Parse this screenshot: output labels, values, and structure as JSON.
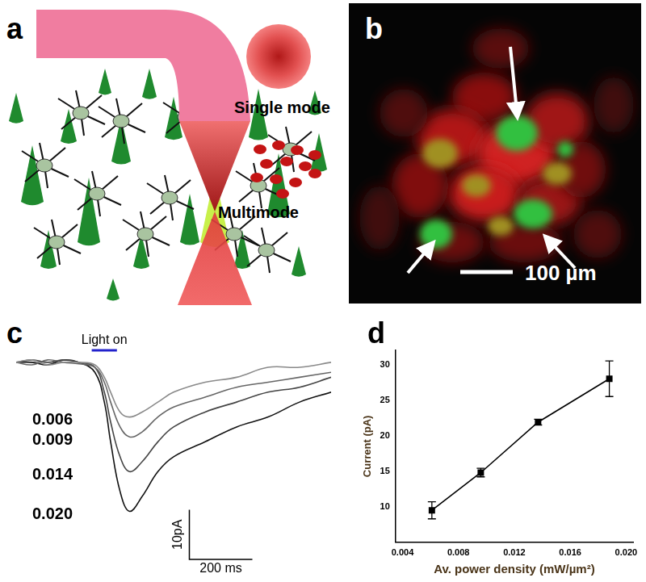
{
  "figure": {
    "a": {
      "label": "a",
      "texts": [
        "Single mode",
        "Multimode"
      ]
    },
    "b": {
      "label": "b",
      "scale_bar": "100 µm"
    }
  },
  "chart_data": [
    {
      "label": "c",
      "type": "line",
      "x": [
        0,
        50,
        100,
        150,
        200,
        250,
        280,
        300,
        330,
        360,
        400,
        450,
        500,
        600,
        700,
        800,
        900,
        1000
      ],
      "xlim": [
        0,
        1000
      ],
      "ylim": [
        -40,
        6
      ],
      "tick_labels": false,
      "grid": false,
      "series": [
        {
          "name": "0.006",
          "color": "#8a8a8a",
          "values": [
            0,
            0.5,
            -0.5,
            0,
            0,
            -0.5,
            -3,
            -6,
            -10,
            -11,
            -10,
            -8,
            -6,
            -4,
            -3,
            -1,
            -1,
            0
          ]
        },
        {
          "name": "0.009",
          "color": "#666666",
          "values": [
            0,
            -0.5,
            0.5,
            0,
            -0.3,
            -1,
            -4,
            -8,
            -13,
            -15,
            -14,
            -11,
            -9,
            -7,
            -5,
            -4,
            -3,
            -2
          ]
        },
        {
          "name": "0.014",
          "color": "#444444",
          "values": [
            0,
            0.5,
            0,
            0.5,
            0,
            -1,
            -6,
            -12,
            -19,
            -22,
            -20,
            -16,
            -13,
            -10,
            -8,
            -6,
            -5,
            -3
          ]
        },
        {
          "name": "0.020",
          "color": "#111111",
          "values": [
            0,
            0,
            -0.5,
            0.5,
            0,
            -2,
            -8,
            -16,
            -26,
            -30,
            -27,
            -22,
            -19,
            -16,
            -13,
            -11,
            -8,
            -6
          ]
        }
      ],
      "annotations": [
        {
          "text": "Light on",
          "x_start": 240,
          "x_end": 320,
          "color": "#2222cc"
        }
      ],
      "scale_bar": {
        "x": 200,
        "x_label": "200 ms",
        "y": 10,
        "y_label": "10pA"
      }
    },
    {
      "label": "d",
      "type": "line",
      "x": [
        0.0061,
        0.0096,
        0.0137,
        0.0188
      ],
      "values": [
        9.5,
        14.8,
        21.9,
        28
      ],
      "errors": [
        1.2,
        0.6,
        0.4,
        2.5
      ],
      "color": "#000000",
      "marker": "square",
      "xlabel": "Av. power density (mW/µm²)",
      "ylabel": "Current (pA)",
      "xlim": [
        0.0035,
        0.0205
      ],
      "xticks": [
        0.004,
        0.008,
        0.012,
        0.016,
        {
          "value": 0.02,
          "label": "0.020"
        }
      ],
      "ylim": [
        5,
        32
      ],
      "yticks": [
        10,
        15,
        20,
        25,
        30
      ],
      "grid": false
    }
  ]
}
